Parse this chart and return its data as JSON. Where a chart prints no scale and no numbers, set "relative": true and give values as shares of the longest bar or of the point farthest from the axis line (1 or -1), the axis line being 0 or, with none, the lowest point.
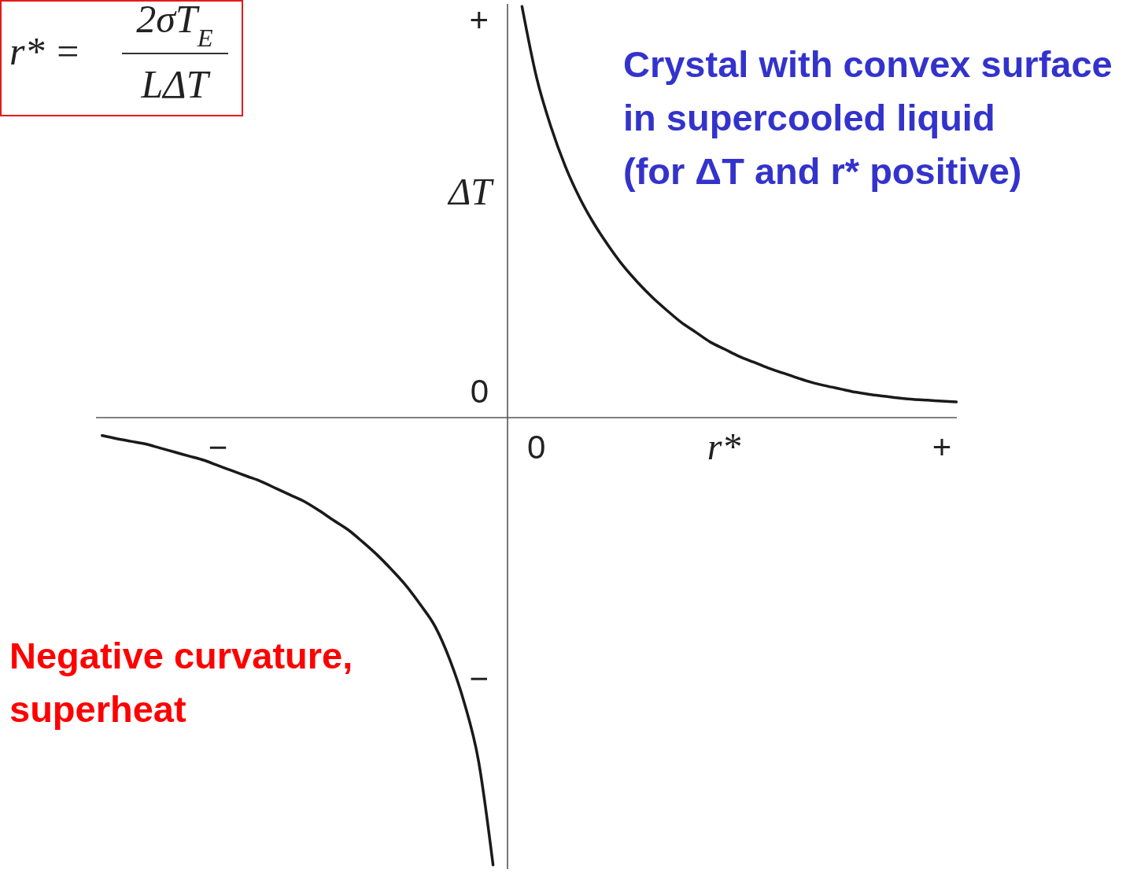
{
  "chart_data": {
    "type": "line",
    "relative": true,
    "xlabel": "r*",
    "ylabel": "ΔT",
    "annotations": [
      "r* =",
      "2σT$_{E}$",
      "LΔT",
      "+",
      "0",
      "−",
      "Crystal with convex surface\nin supercooled liquid\n(for ΔT and r* positive)",
      "Negative curvature,\nsuperheat"
    ],
    "categories": [
      null,
      null,
      null,
      null,
      null,
      null,
      null,
      null,
      "−",
      null,
      null,
      null,
      null,
      null,
      null,
      null,
      null,
      null,
      null,
      null,
      null,
      null,
      null,
      null,
      null,
      null,
      null,
      null,
      null,
      null,
      "0",
      null,
      null,
      null,
      null,
      null,
      null,
      null,
      null,
      null,
      null,
      null,
      null,
      null,
      null,
      null,
      null,
      null,
      null,
      null,
      null,
      null,
      null,
      null,
      null,
      null,
      null,
      null,
      "+",
      null
    ],
    "series": [
      {
        "color": "#1a1a1a",
        "values": [
          -0.04,
          -0.047,
          -0.053,
          -0.059,
          -0.068,
          -0.077,
          -0.086,
          -0.095,
          -0.107,
          -0.119,
          -0.131,
          -0.143,
          -0.158,
          -0.173,
          -0.188,
          -0.208,
          -0.23,
          -0.251,
          -0.278,
          -0.307,
          -0.34,
          -0.376,
          -0.419,
          -0.467,
          -0.54,
          -0.636,
          -0.768,
          -1.0,
          null,
          0.919,
          0.761,
          0.65,
          0.561,
          0.49,
          0.432,
          0.383,
          0.339,
          0.302,
          0.269,
          0.24,
          0.213,
          0.191,
          0.169,
          0.153,
          0.137,
          0.124,
          0.111,
          0.1,
          0.089,
          0.079,
          0.071,
          0.064,
          0.057,
          0.052,
          0.048,
          0.044,
          0.041,
          0.039,
          0.037,
          0.035
        ]
      }
    ]
  }
}
